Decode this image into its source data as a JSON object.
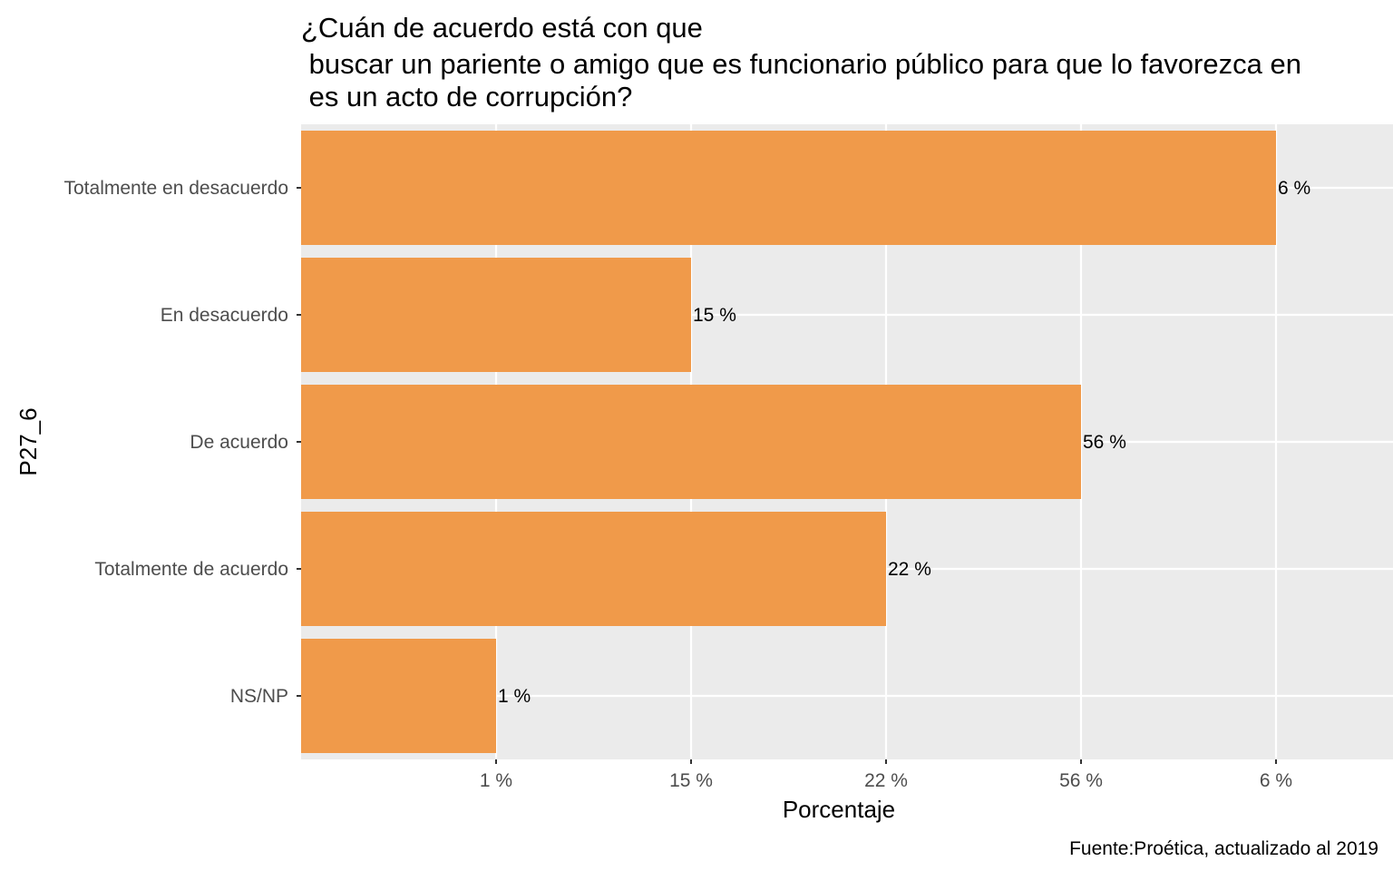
{
  "chart_data": {
    "type": "bar",
    "orientation": "horizontal",
    "title_lines": [
      "¿Cuán de acuerdo está con que",
      " buscar un pariente o amigo que es funcionario público para que lo favorezca en",
      " es un acto de corrupción?"
    ],
    "xlabel": "Porcentaje",
    "ylabel": "P27_6",
    "caption": "Fuente:Proética, actualizado al 2019",
    "categories": [
      "Totalmente en desacuerdo",
      "En desacuerdo",
      "De acuerdo",
      "Totalmente de acuerdo",
      "NS/NP"
    ],
    "bar_rank": [
      5,
      2,
      4,
      3,
      1
    ],
    "data_labels": [
      "6 %",
      "15 %",
      "56 %",
      "22 %",
      "1 %"
    ],
    "x_tick_labels": [
      "1 %",
      "15 %",
      "22 %",
      "56 %",
      "6 %"
    ],
    "xlim": [
      0,
      5.6
    ],
    "bar_color": "#F09A4A",
    "panel_background": "#EBEBEB",
    "grid_color": "#FFFFFF",
    "grid": true,
    "legend": "none"
  }
}
